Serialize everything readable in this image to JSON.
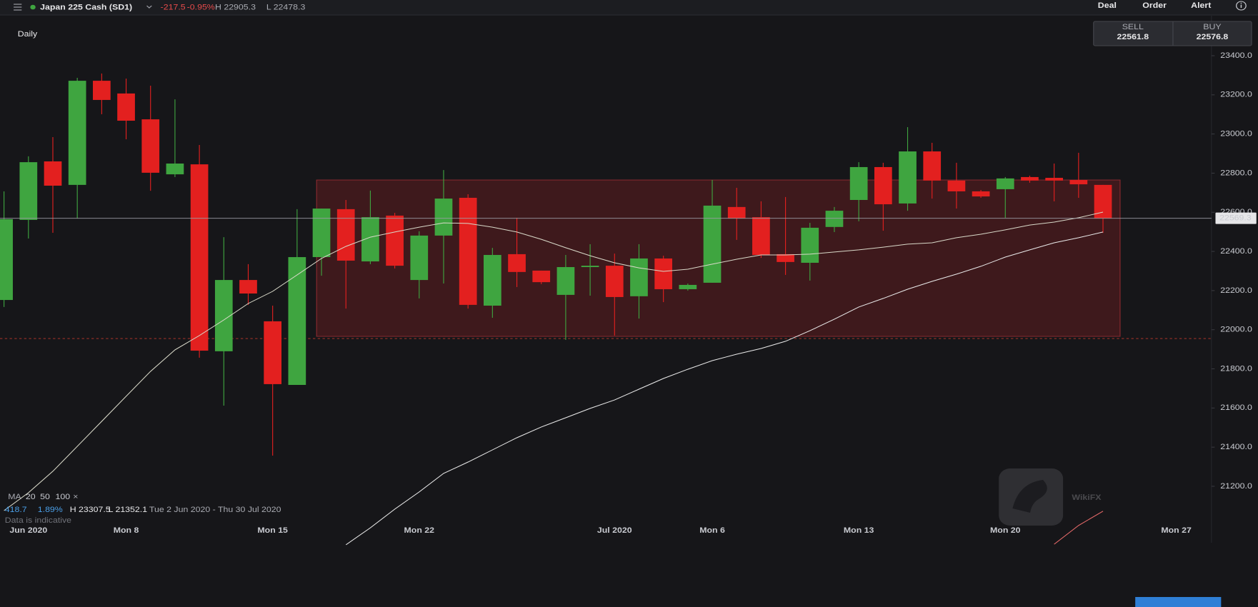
{
  "header": {
    "instrument": "Japan 225 Cash (SD1)",
    "change": "-217.5",
    "change_pct": "-0.95%",
    "high": "H 22905.3",
    "low": "L 22478.3",
    "menu": [
      "Deal",
      "Order",
      "Alert"
    ]
  },
  "quote": {
    "sell_label": "SELL",
    "sell": "22561.8",
    "buy_label": "BUY",
    "buy": "22576.8"
  },
  "watermark": "WikiFX",
  "chart_data": {
    "type": "candlestick",
    "timeframe": "Daily",
    "categories": [
      null,
      "Jun 2020",
      null,
      null,
      null,
      "Mon 8",
      null,
      null,
      null,
      null,
      null,
      "Mon 15",
      null,
      null,
      null,
      null,
      null,
      "Mon 22",
      null,
      null,
      null,
      null,
      null,
      null,
      null,
      "Jul 2020",
      null,
      null,
      null,
      "Mon 6",
      null,
      null,
      null,
      null,
      null,
      "Mon 13",
      null,
      null,
      null,
      null,
      null,
      "Mon 20",
      null,
      null,
      null,
      null,
      null,
      null,
      "Mon 27",
      null
    ],
    "open": [
      22152,
      22561,
      22860,
      22740,
      23272,
      23207,
      23075,
      22794,
      22845,
      21890,
      22254,
      22043,
      21718,
      22371,
      22616,
      22349,
      22583,
      22254,
      22481,
      22674,
      22123,
      22386,
      22302,
      22178,
      22320,
      22327,
      22171,
      22364,
      22207,
      22240,
      22627,
      22575,
      22386,
      22342,
      22525,
      22663,
      22831,
      22645,
      22911,
      22762,
      22707,
      22718,
      22780,
      22776,
      22765,
      22740,
      null,
      null,
      null,
      null
    ],
    "high": [
      22707,
      22886,
      22984,
      23287,
      23309,
      23283,
      23247,
      23177,
      22944,
      22473,
      22335,
      22123,
      22616,
      22619,
      22663,
      22711,
      22597,
      22503,
      22816,
      22692,
      22418,
      22572,
      22302,
      22382,
      22437,
      22389,
      22437,
      22378,
      22236,
      22765,
      22725,
      22656,
      22678,
      22546,
      22627,
      22856,
      22853,
      23035,
      22955,
      22853,
      22714,
      22780,
      22787,
      22849,
      22904,
      22740,
      null,
      null,
      null,
      null
    ],
    "low": [
      22116,
      22466,
      22495,
      22568,
      23101,
      22973,
      22710,
      22780,
      21857,
      21612,
      22127,
      21357,
      21718,
      22276,
      22108,
      22335,
      22313,
      22160,
      22236,
      22108,
      22061,
      22218,
      22233,
      21948,
      22174,
      21970,
      22057,
      22141,
      22200,
      22240,
      22459,
      22367,
      22280,
      22251,
      22499,
      22554,
      22506,
      22608,
      22670,
      22619,
      22674,
      22572,
      22751,
      22656,
      22674,
      22495,
      null,
      null,
      null,
      null
    ],
    "close": [
      22565,
      22856,
      22736,
      23272,
      23174,
      23068,
      22802,
      22849,
      21893,
      22254,
      22185,
      21722,
      22371,
      22619,
      22353,
      22575,
      22327,
      22481,
      22670,
      22127,
      22382,
      22295,
      22243,
      22320,
      22327,
      22167,
      22364,
      22207,
      22229,
      22634,
      22568,
      22382,
      22346,
      22521,
      22608,
      22831,
      22641,
      22911,
      22762,
      22707,
      22681,
      22773,
      22762,
      22762,
      22743,
      22568,
      null,
      null,
      null,
      null
    ],
    "up_color": "#3fa540",
    "down_color": "#e3201f",
    "ma_label": "MA",
    "series": [
      {
        "name": "20",
        "color": "#3fa540",
        "line_color": "#d8d8c8",
        "values": [
          21076,
          21167,
          21277,
          21404,
          21532,
          21660,
          21787,
          21897,
          21970,
          22050,
          22134,
          22196,
          22280,
          22364,
          22426,
          22473,
          22499,
          22524,
          22546,
          22543,
          22524,
          22499,
          22462,
          22419,
          22378,
          22342,
          22316,
          22298,
          22309,
          22335,
          22360,
          22382,
          22382,
          22386,
          22397,
          22408,
          22422,
          22437,
          22444,
          22470,
          22488,
          22510,
          22535,
          22550,
          22572,
          22601,
          null,
          null,
          null,
          null
        ]
      },
      {
        "name": "50",
        "color": "#e8e8e8",
        "line_color": "#e8e8e8",
        "values": [
          null,
          null,
          null,
          null,
          null,
          null,
          null,
          null,
          null,
          null,
          null,
          null,
          null,
          null,
          20901,
          20988,
          21083,
          21171,
          21266,
          21324,
          21386,
          21448,
          21503,
          21550,
          21598,
          21641,
          21696,
          21751,
          21798,
          21842,
          21875,
          21904,
          21941,
          21995,
          22054,
          22116,
          22160,
          22207,
          22247,
          22284,
          22324,
          22371,
          22408,
          22444,
          22470,
          22499,
          null,
          null,
          null,
          null
        ]
      },
      {
        "name": "100",
        "color": "#e84b4b",
        "line_color": "#e86a6a",
        "values": [
          null,
          null,
          null,
          null,
          null,
          null,
          null,
          null,
          null,
          null,
          null,
          null,
          null,
          null,
          null,
          null,
          null,
          null,
          null,
          null,
          null,
          null,
          null,
          null,
          null,
          null,
          null,
          null,
          null,
          null,
          null,
          null,
          null,
          null,
          null,
          null,
          null,
          null,
          null,
          null,
          null,
          null,
          null,
          20904,
          21000,
          21073,
          null,
          null,
          null,
          null
        ]
      }
    ],
    "remove_label": "×",
    "zone": {
      "low": 21966,
      "high": 22765
    },
    "reference_line": 21955,
    "last_price": 22569.3,
    "stats": {
      "change": "418.7",
      "change_pct": "1.89%",
      "high": "H 23307.5",
      "low": "L 21352.1",
      "range": "Tue 2 Jun 2020 - Thu 30 Jul 2020",
      "note": "Data is indicative"
    },
    "ylim": [
      20800,
      23500
    ],
    "yticks": [
      {
        "value": 21200,
        "label": "21200.0"
      },
      {
        "value": 21400,
        "label": "21400.0"
      },
      {
        "value": 21600,
        "label": "21600.0"
      },
      {
        "value": 21800,
        "label": "21800.0"
      },
      {
        "value": 22000,
        "label": "22000.0"
      },
      {
        "value": 22200,
        "label": "22200.0"
      },
      {
        "value": 22400,
        "label": "22400.0"
      },
      {
        "value": 22600,
        "label": "22600.0"
      },
      {
        "value": 22800,
        "label": "22800.0"
      },
      {
        "value": 23000,
        "label": "23000.0"
      },
      {
        "value": 23200,
        "label": "23200.0"
      },
      {
        "value": 23400,
        "label": "23400.0"
      }
    ]
  }
}
